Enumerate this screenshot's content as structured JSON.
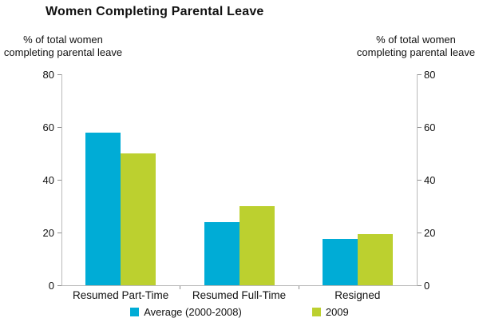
{
  "chart_data": {
    "type": "bar",
    "title": "Women Completing Parental Leave",
    "left_axis_label": "% of total women\ncompleting parental leave",
    "right_axis_label": "% of total women\ncompleting parental leave",
    "categories": [
      "Resumed Part-Time",
      "Resumed Full-Time",
      "Resigned"
    ],
    "series": [
      {
        "name": "Average (2000-2008)",
        "color": "#00ACD6",
        "values": [
          58,
          24,
          17.5
        ]
      },
      {
        "name": "2009",
        "color": "#BCD02F",
        "values": [
          50,
          30,
          19.5
        ]
      }
    ],
    "ylim": [
      0,
      80
    ],
    "yticks": [
      0,
      20,
      40,
      60,
      80
    ],
    "grid": false,
    "dual_axis": true,
    "legend_position": "bottom"
  }
}
